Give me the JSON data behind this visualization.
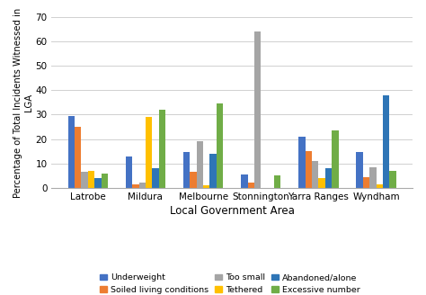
{
  "categories": [
    "Latrobe",
    "Mildura",
    "Melbourne",
    "Stonnington",
    "Yarra Ranges",
    "Wyndham"
  ],
  "series": {
    "Underweight": [
      29.5,
      13,
      14.5,
      5.5,
      21,
      14.5
    ],
    "Soiled living conditions": [
      25,
      1.5,
      6.5,
      2,
      15,
      4.5
    ],
    "Too small": [
      6.5,
      2,
      19,
      64,
      11,
      8.5
    ],
    "Tethered": [
      7,
      29,
      1,
      0,
      4,
      1.5
    ],
    "Abandoned/alone": [
      4,
      8,
      14,
      0,
      8,
      38
    ],
    "Excessive number": [
      6,
      32,
      34.5,
      5,
      23.5,
      7
    ]
  },
  "colors": {
    "Underweight": "#4472C4",
    "Soiled living conditions": "#ED7D31",
    "Too small": "#A5A5A5",
    "Tethered": "#FFC000",
    "Abandoned/alone": "#2E75B6",
    "Excessive number": "#70AD47"
  },
  "ylabel": "Percentage of Total Incidents Witnessed in\nLGA",
  "xlabel": "Local Government Area",
  "ylim": [
    0,
    70
  ],
  "yticks": [
    0,
    10,
    20,
    30,
    40,
    50,
    60,
    70
  ],
  "legend_order": [
    "Underweight",
    "Soiled living conditions",
    "Too small",
    "Tethered",
    "Abandoned/alone",
    "Excessive number"
  ],
  "background_color": "#ffffff"
}
